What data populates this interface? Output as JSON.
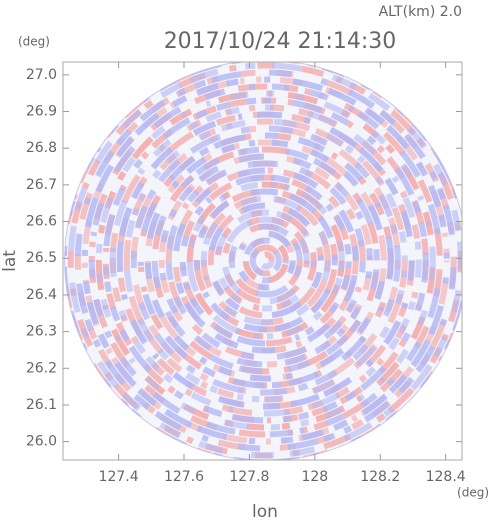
{
  "chart_data": {
    "type": "radar-ppi",
    "title": "2017/10/24 21:14:30",
    "altitude_label": "ALT(km) 2.0",
    "x_label": "lon",
    "y_label": "lat",
    "x_unit": "(deg)",
    "y_unit": "(deg)",
    "xlim": [
      127.23,
      128.45
    ],
    "ylim": [
      25.95,
      27.035
    ],
    "xticks": [
      127.4,
      127.6,
      127.8,
      128.0,
      128.2,
      128.4
    ],
    "yticks": [
      26.0,
      26.1,
      26.2,
      26.3,
      26.4,
      26.5,
      26.6,
      26.7,
      26.8,
      26.9,
      27.0
    ],
    "center": [
      127.85,
      26.494
    ],
    "range_lon": 0.615,
    "range_lat": 0.546,
    "colors": [
      "#f4a9a9",
      "#b3b8f4"
    ]
  }
}
